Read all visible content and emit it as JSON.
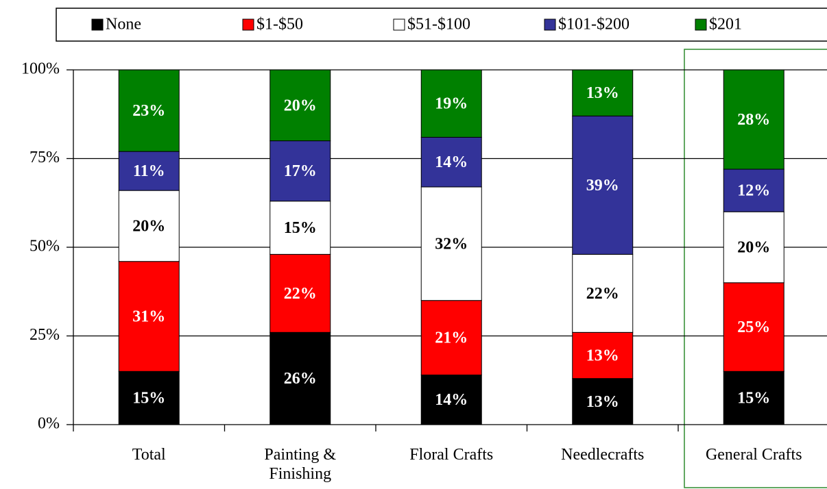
{
  "chart_data": {
    "type": "stacked_bar",
    "categories": [
      "Total",
      "Painting & Finishing",
      "Floral Crafts",
      "Needlecrafts",
      "General Crafts"
    ],
    "series": [
      {
        "name": "None",
        "color": "#000000",
        "values": [
          15,
          26,
          14,
          13,
          15
        ],
        "value_labels": [
          "15%",
          "26%",
          "14%",
          "13%",
          "15%"
        ]
      },
      {
        "name": "$1-$50",
        "color": "#ff0000",
        "values": [
          31,
          22,
          21,
          13,
          25
        ],
        "value_labels": [
          "31%",
          "22%",
          "21%",
          "13%",
          "25%"
        ]
      },
      {
        "name": "$51-$100",
        "color": "#ffffff",
        "values": [
          20,
          15,
          32,
          22,
          20
        ],
        "value_labels": [
          "20%",
          "15%",
          "32%",
          "22%",
          "20%"
        ]
      },
      {
        "name": "$101-$200",
        "color": "#333399",
        "values": [
          11,
          17,
          14,
          39,
          12
        ],
        "value_labels": [
          "11%",
          "17%",
          "14%",
          "39%",
          "12%"
        ]
      },
      {
        "name": "$201",
        "color": "#008000",
        "values": [
          23,
          20,
          19,
          13,
          28
        ],
        "value_labels": [
          "23%",
          "20%",
          "19%",
          "13%",
          "28%"
        ]
      }
    ],
    "ylim": [
      0,
      100
    ],
    "yticks": [
      {
        "value": 0,
        "label": "0%"
      },
      {
        "value": 25,
        "label": "25%"
      },
      {
        "value": 50,
        "label": "50%"
      },
      {
        "value": 75,
        "label": "75%"
      },
      {
        "value": 100,
        "label": "100%"
      }
    ],
    "grid": true
  }
}
